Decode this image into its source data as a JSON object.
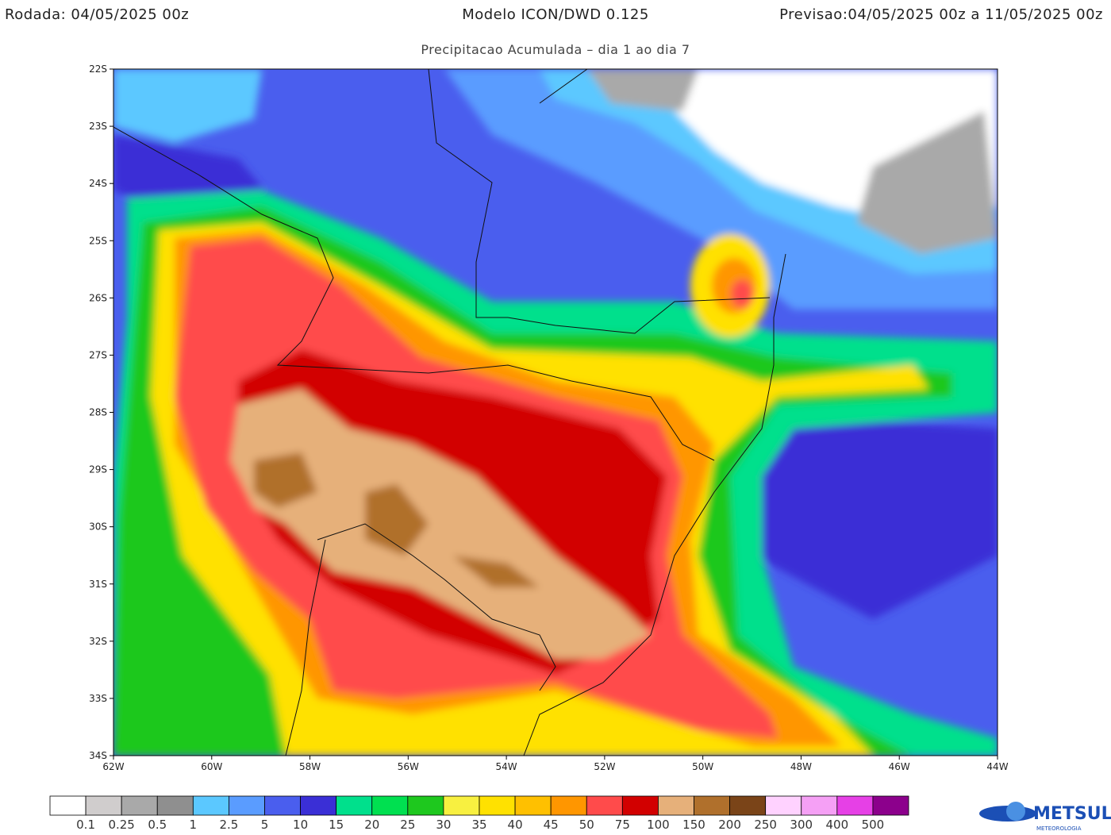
{
  "header": {
    "run": "Rodada: 04/05/2025 00z",
    "model": "Modelo ICON/DWD 0.125",
    "forecast": "Previsao:04/05/2025 00z a 11/05/2025 00z",
    "subtitle": "Precipitacao Acumulada – dia 1 ao dia 7"
  },
  "map": {
    "lat_labels": [
      "22S",
      "23S",
      "24S",
      "25S",
      "26S",
      "27S",
      "28S",
      "29S",
      "30S",
      "31S",
      "32S",
      "33S",
      "34S"
    ],
    "lon_labels": [
      "62W",
      "60W",
      "58W",
      "56W",
      "54W",
      "52W",
      "50W",
      "48W",
      "46W",
      "44W"
    ]
  },
  "legend": {
    "colors": [
      "#ffffff",
      "#d0cdcd",
      "#a9a9a9",
      "#8f8f8f",
      "#5bc8ff",
      "#5a9cff",
      "#4a5eee",
      "#3a2fd6",
      "#00e08c",
      "#00e050",
      "#1ec81e",
      "#f8f040",
      "#ffe100",
      "#ffc000",
      "#ff9600",
      "#ff4b4b",
      "#d20000",
      "#e6b07a",
      "#b0702c",
      "#7a4418",
      "#ffd2ff",
      "#f5a0f5",
      "#e640e6",
      "#8c008c"
    ],
    "labels": [
      "0.1",
      "0.25",
      "0.5",
      "1",
      "2.5",
      "5",
      "10",
      "15",
      "20",
      "25",
      "30",
      "35",
      "40",
      "45",
      "50",
      "75",
      "100",
      "150",
      "200",
      "250",
      "300",
      "400",
      "500"
    ]
  },
  "logo": {
    "name": "METSUL",
    "tagline": "METEOROLOGIA"
  }
}
